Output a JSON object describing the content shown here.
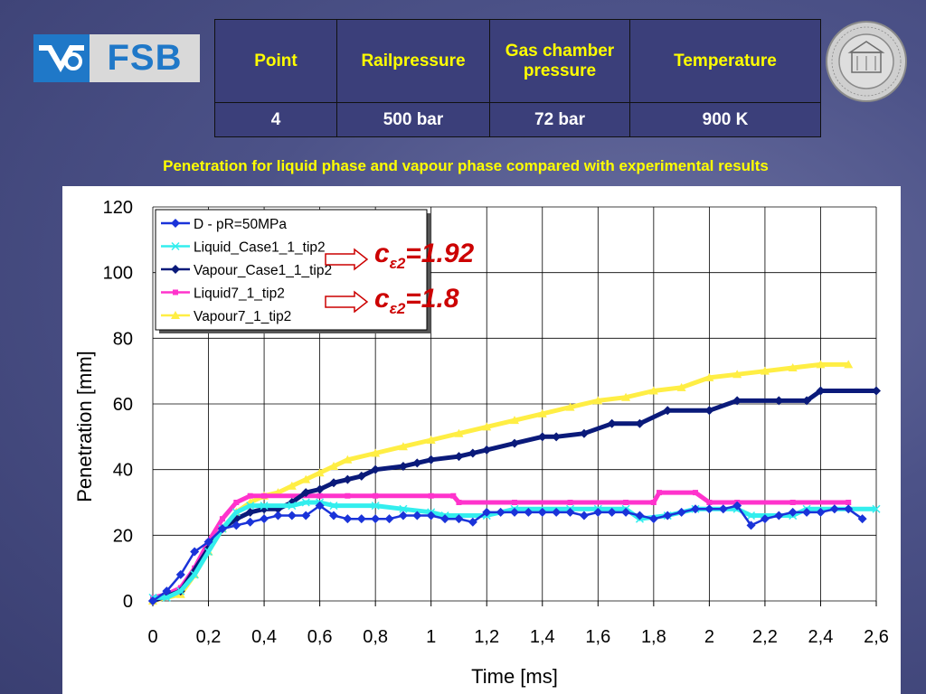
{
  "logo": {
    "text": "FSB"
  },
  "table": {
    "headers": [
      "Point",
      "Railpressure",
      "Gas chamber pressure",
      "Temperature"
    ],
    "values": [
      "4",
      "500 bar",
      "72 bar",
      "900 K"
    ]
  },
  "seal": {
    "text": "UNIVERSITAS STUDIORUM ZAGRABIENSIS MDCLXIX"
  },
  "subtitle": "Penetration for liquid phase and vapour phase compared with experimental  results",
  "annotations": [
    {
      "prefix": "c",
      "sub": "ε2",
      "value": "=1.92"
    },
    {
      "prefix": "c",
      "sub": "ε2",
      "value": "=1.8"
    }
  ],
  "chart_data": {
    "type": "line",
    "xlabel": "Time [ms]",
    "ylabel": "Penetration [mm]",
    "xlim": [
      0,
      2.6
    ],
    "ylim": [
      0,
      120
    ],
    "xticks": [
      "0",
      "0,2",
      "0,4",
      "0,6",
      "0,8",
      "1",
      "1,2",
      "1,4",
      "1,6",
      "1,8",
      "2",
      "2,2",
      "2,4",
      "2,6"
    ],
    "yticks": [
      "0",
      "20",
      "40",
      "60",
      "80",
      "100",
      "120"
    ],
    "grid": true,
    "legend_position": "top-left",
    "series": [
      {
        "name": "D - pR=50MPa",
        "color": "#1a33d9",
        "marker": "diamond",
        "points": [
          [
            0,
            0
          ],
          [
            0.05,
            3
          ],
          [
            0.1,
            8
          ],
          [
            0.15,
            15
          ],
          [
            0.2,
            18
          ],
          [
            0.25,
            22
          ],
          [
            0.3,
            23
          ],
          [
            0.35,
            24
          ],
          [
            0.4,
            25
          ],
          [
            0.45,
            26
          ],
          [
            0.5,
            26
          ],
          [
            0.55,
            26
          ],
          [
            0.6,
            29
          ],
          [
            0.65,
            26
          ],
          [
            0.7,
            25
          ],
          [
            0.75,
            25
          ],
          [
            0.8,
            25
          ],
          [
            0.85,
            25
          ],
          [
            0.9,
            26
          ],
          [
            0.95,
            26
          ],
          [
            1.0,
            26
          ],
          [
            1.05,
            25
          ],
          [
            1.1,
            25
          ],
          [
            1.15,
            24
          ],
          [
            1.2,
            27
          ],
          [
            1.25,
            27
          ],
          [
            1.3,
            27
          ],
          [
            1.35,
            27
          ],
          [
            1.4,
            27
          ],
          [
            1.45,
            27
          ],
          [
            1.5,
            27
          ],
          [
            1.55,
            26
          ],
          [
            1.6,
            27
          ],
          [
            1.65,
            27
          ],
          [
            1.7,
            27
          ],
          [
            1.75,
            26
          ],
          [
            1.8,
            25
          ],
          [
            1.85,
            26
          ],
          [
            1.9,
            27
          ],
          [
            1.95,
            28
          ],
          [
            2.0,
            28
          ],
          [
            2.05,
            28
          ],
          [
            2.1,
            29
          ],
          [
            2.15,
            23
          ],
          [
            2.2,
            25
          ],
          [
            2.25,
            26
          ],
          [
            2.3,
            27
          ],
          [
            2.35,
            27
          ],
          [
            2.4,
            27
          ],
          [
            2.45,
            28
          ],
          [
            2.5,
            28
          ],
          [
            2.55,
            25
          ]
        ]
      },
      {
        "name": "Liquid_Case1_1_tip2",
        "color": "#33eeee",
        "marker": "star",
        "points": [
          [
            0,
            1
          ],
          [
            0.05,
            1
          ],
          [
            0.1,
            3
          ],
          [
            0.15,
            8
          ],
          [
            0.2,
            15
          ],
          [
            0.25,
            22
          ],
          [
            0.3,
            27
          ],
          [
            0.35,
            29
          ],
          [
            0.4,
            29
          ],
          [
            0.5,
            29
          ],
          [
            0.55,
            30
          ],
          [
            0.6,
            30
          ],
          [
            0.65,
            29
          ],
          [
            0.8,
            29
          ],
          [
            0.9,
            28
          ],
          [
            1.0,
            27
          ],
          [
            1.05,
            26
          ],
          [
            1.2,
            26
          ],
          [
            1.3,
            28
          ],
          [
            1.5,
            28
          ],
          [
            1.6,
            28
          ],
          [
            1.7,
            28
          ],
          [
            1.75,
            25
          ],
          [
            1.85,
            26
          ],
          [
            1.95,
            28
          ],
          [
            2.1,
            28
          ],
          [
            2.15,
            26
          ],
          [
            2.3,
            26
          ],
          [
            2.35,
            28
          ],
          [
            2.6,
            28
          ]
        ]
      },
      {
        "name": "Vapour_Case1_1_tip2",
        "color": "#0a1a7a",
        "marker": "diamond",
        "points": [
          [
            0,
            0
          ],
          [
            0.1,
            3
          ],
          [
            0.2,
            16
          ],
          [
            0.25,
            22
          ],
          [
            0.3,
            25
          ],
          [
            0.35,
            27
          ],
          [
            0.4,
            28
          ],
          [
            0.45,
            28
          ],
          [
            0.5,
            30
          ],
          [
            0.55,
            33
          ],
          [
            0.6,
            34
          ],
          [
            0.65,
            36
          ],
          [
            0.7,
            37
          ],
          [
            0.75,
            38
          ],
          [
            0.8,
            40
          ],
          [
            0.9,
            41
          ],
          [
            0.95,
            42
          ],
          [
            1.0,
            43
          ],
          [
            1.1,
            44
          ],
          [
            1.15,
            45
          ],
          [
            1.2,
            46
          ],
          [
            1.3,
            48
          ],
          [
            1.4,
            50
          ],
          [
            1.45,
            50
          ],
          [
            1.55,
            51
          ],
          [
            1.65,
            54
          ],
          [
            1.75,
            54
          ],
          [
            1.85,
            58
          ],
          [
            2.0,
            58
          ],
          [
            2.1,
            61
          ],
          [
            2.25,
            61
          ],
          [
            2.35,
            61
          ],
          [
            2.4,
            64
          ],
          [
            2.6,
            64
          ]
        ]
      },
      {
        "name": "Liquid7_1_tip2",
        "color": "#ff33cc",
        "marker": "square",
        "points": [
          [
            0,
            1
          ],
          [
            0.05,
            2
          ],
          [
            0.1,
            4
          ],
          [
            0.15,
            10
          ],
          [
            0.2,
            18
          ],
          [
            0.25,
            25
          ],
          [
            0.3,
            30
          ],
          [
            0.35,
            32
          ],
          [
            0.4,
            32
          ],
          [
            0.6,
            32
          ],
          [
            0.7,
            32
          ],
          [
            0.8,
            32
          ],
          [
            1.0,
            32
          ],
          [
            1.08,
            32
          ],
          [
            1.1,
            30
          ],
          [
            1.3,
            30
          ],
          [
            1.5,
            30
          ],
          [
            1.7,
            30
          ],
          [
            1.8,
            30
          ],
          [
            1.82,
            33
          ],
          [
            1.95,
            33
          ],
          [
            2.0,
            30
          ],
          [
            2.1,
            30
          ],
          [
            2.3,
            30
          ],
          [
            2.5,
            30
          ]
        ]
      },
      {
        "name": "Vapour7_1_tip2",
        "color": "#ffee44",
        "marker": "triangle",
        "points": [
          [
            0,
            0
          ],
          [
            0.1,
            2
          ],
          [
            0.15,
            8
          ],
          [
            0.2,
            15
          ],
          [
            0.25,
            22
          ],
          [
            0.3,
            27
          ],
          [
            0.35,
            30
          ],
          [
            0.4,
            32
          ],
          [
            0.45,
            33
          ],
          [
            0.5,
            35
          ],
          [
            0.55,
            37
          ],
          [
            0.6,
            39
          ],
          [
            0.65,
            41
          ],
          [
            0.7,
            43
          ],
          [
            0.8,
            45
          ],
          [
            0.9,
            47
          ],
          [
            1.0,
            49
          ],
          [
            1.1,
            51
          ],
          [
            1.2,
            53
          ],
          [
            1.3,
            55
          ],
          [
            1.4,
            57
          ],
          [
            1.5,
            59
          ],
          [
            1.6,
            61
          ],
          [
            1.7,
            62
          ],
          [
            1.8,
            64
          ],
          [
            1.9,
            65
          ],
          [
            2.0,
            68
          ],
          [
            2.1,
            69
          ],
          [
            2.2,
            70
          ],
          [
            2.3,
            71
          ],
          [
            2.4,
            72
          ],
          [
            2.5,
            72
          ]
        ]
      }
    ]
  }
}
